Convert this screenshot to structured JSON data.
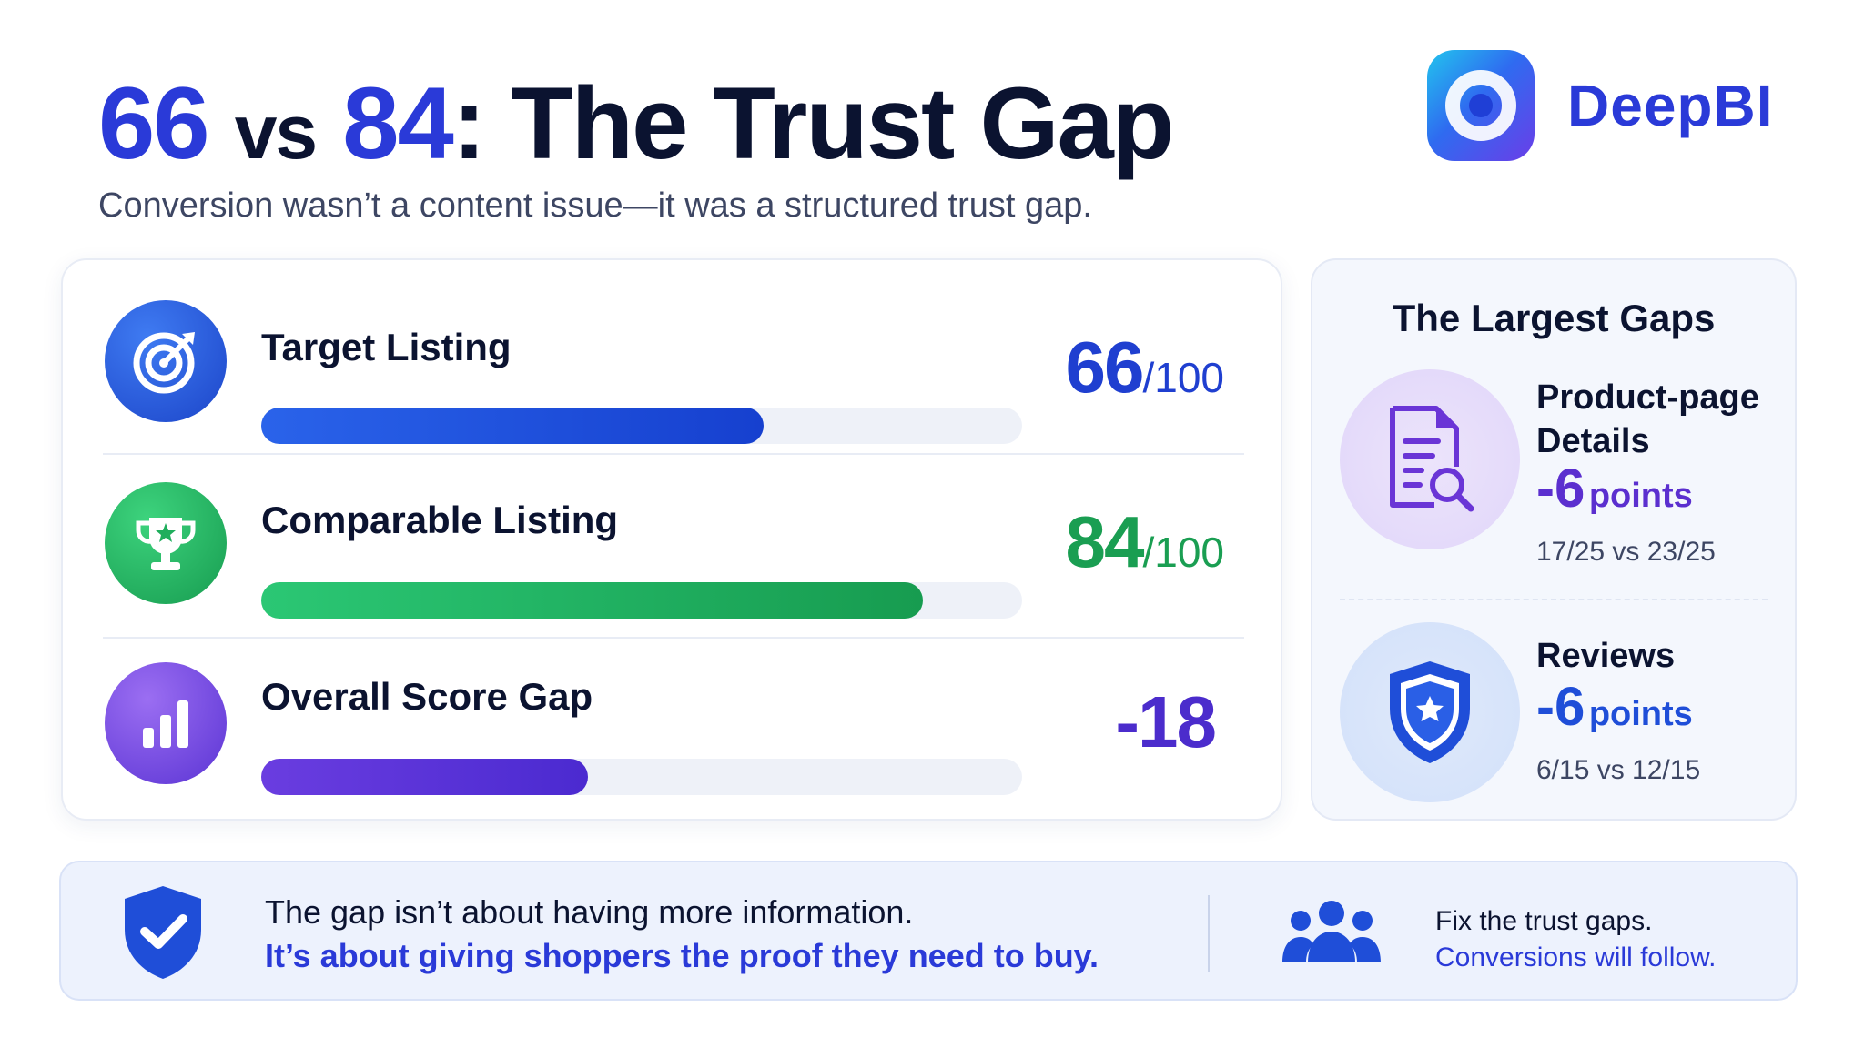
{
  "header": {
    "title_num_a": "66",
    "title_vs": "vs",
    "title_num_b": "84",
    "title_colon": ":",
    "title_rest": "The Trust Gap",
    "subtitle": "Conversion wasn’t a content issue—it was a structured trust gap.",
    "brand_name": "DeepBI",
    "brand_logo_icon": "deepbi-logo-icon"
  },
  "scores": [
    {
      "label": "Target Listing",
      "value": "66",
      "suffix": "/100",
      "progress_pct": 66,
      "icon": "target-icon",
      "color": "#1f4ed8"
    },
    {
      "label": "Comparable Listing",
      "value": "84",
      "suffix": "/100",
      "progress_pct": 84,
      "icon": "trophy-icon",
      "color": "#1faa5a"
    },
    {
      "label": "Overall Score Gap",
      "value": "-18",
      "suffix": "",
      "progress_pct": 51,
      "icon": "bar-chart-icon",
      "color": "#5a2fd6"
    }
  ],
  "largest_gaps": {
    "title": "The Largest Gaps",
    "items": [
      {
        "name": "Product-page Details",
        "points_value": "-6",
        "points_word": "points",
        "comparison": "17/25 vs 23/25",
        "icon": "document-search-icon",
        "color": "#6a35d6"
      },
      {
        "name": "Reviews",
        "points_value": "-6",
        "points_word": "points",
        "comparison": "6/15 vs 12/15",
        "icon": "shield-star-icon",
        "color": "#1f4ed8"
      }
    ]
  },
  "banner": {
    "line1": "The gap isn’t about having more information.",
    "line2": "It’s about giving shoppers the proof they need to buy.",
    "line3": "Fix the trust gaps.",
    "line4": "Conversions will follow.",
    "shield_icon": "shield-check-icon",
    "people_icon": "people-group-icon"
  }
}
